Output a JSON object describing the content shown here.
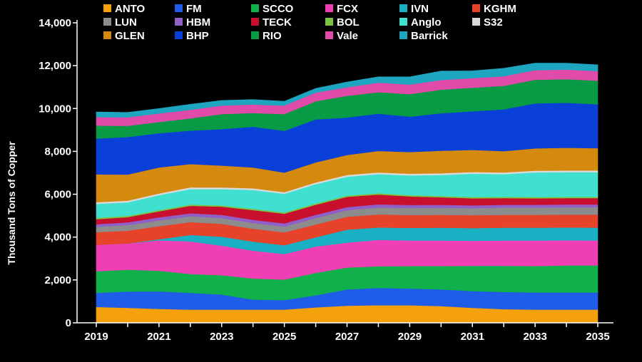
{
  "chart_data": {
    "type": "area",
    "stacked": true,
    "title": "",
    "xlabel": "",
    "ylabel": "Thousand Tons of Copper",
    "ylim": [
      0,
      14000
    ],
    "yticks": [
      "0",
      "2,000",
      "4,000",
      "6,000",
      "8,000",
      "10,000",
      "12,000",
      "14,000"
    ],
    "xticks": [
      "2019",
      "2021",
      "2023",
      "2025",
      "2027",
      "2029",
      "2031",
      "2033",
      "2035"
    ],
    "grid": false,
    "legend_position": "top",
    "x": [
      2019,
      2020,
      2021,
      2022,
      2023,
      2024,
      2025,
      2026,
      2027,
      2028,
      2029,
      2030,
      2031,
      2032,
      2033,
      2034,
      2035
    ],
    "series": [
      {
        "name": "ANTO",
        "color": "#f5a00d",
        "values": [
          740,
          700,
          650,
          620,
          620,
          620,
          620,
          720,
          800,
          820,
          820,
          780,
          700,
          640,
          620,
          620,
          620
        ]
      },
      {
        "name": "FM",
        "color": "#1f5ce8",
        "values": [
          660,
          760,
          820,
          780,
          700,
          460,
          440,
          560,
          760,
          810,
          780,
          780,
          780,
          800,
          800,
          800,
          800
        ]
      },
      {
        "name": "SCCO",
        "color": "#10b04a",
        "values": [
          1010,
          1020,
          960,
          880,
          900,
          990,
          960,
          1050,
          1020,
          1010,
          1050,
          1090,
          1180,
          1220,
          1230,
          1260,
          1260
        ]
      },
      {
        "name": "FCX",
        "color": "#f03fb4",
        "values": [
          1230,
          1220,
          1420,
          1520,
          1380,
          1300,
          1190,
          1230,
          1160,
          1230,
          1190,
          1190,
          1170,
          1180,
          1190,
          1170,
          1160
        ]
      },
      {
        "name": "IVN",
        "color": "#18b0c2",
        "values": [
          0,
          0,
          50,
          300,
          420,
          420,
          410,
          430,
          610,
          580,
          590,
          600,
          590,
          600,
          600,
          600,
          600
        ]
      },
      {
        "name": "KGHM",
        "color": "#e6432a",
        "values": [
          590,
          600,
          610,
          600,
          600,
          600,
          600,
          600,
          600,
          610,
          600,
          600,
          600,
          600,
          600,
          600,
          610
        ]
      },
      {
        "name": "LUN",
        "color": "#8c8c8c",
        "values": [
          250,
          260,
          270,
          270,
          270,
          270,
          270,
          300,
          300,
          320,
          330,
          330,
          330,
          340,
          340,
          340,
          340
        ]
      },
      {
        "name": "HBM",
        "color": "#9060c8",
        "values": [
          120,
          130,
          140,
          140,
          150,
          150,
          150,
          150,
          150,
          150,
          140,
          140,
          130,
          130,
          130,
          130,
          130
        ]
      },
      {
        "name": "TECK",
        "color": "#c8102e",
        "values": [
          240,
          240,
          280,
          350,
          380,
          450,
          450,
          470,
          480,
          460,
          400,
          350,
          330,
          310,
          300,
          300,
          300
        ]
      },
      {
        "name": "BOL",
        "color": "#7cc242",
        "values": [
          60,
          60,
          60,
          60,
          60,
          60,
          60,
          60,
          60,
          60,
          60,
          60,
          60,
          60,
          60,
          60,
          60
        ]
      },
      {
        "name": "Anglo",
        "color": "#40e0d0",
        "values": [
          650,
          630,
          700,
          720,
          760,
          880,
          870,
          900,
          880,
          890,
          920,
          980,
          1090,
          1060,
          1150,
          1150,
          1150
        ]
      },
      {
        "name": "S32",
        "color": "#d9d9d9",
        "values": [
          80,
          80,
          80,
          80,
          80,
          80,
          80,
          80,
          80,
          80,
          80,
          80,
          80,
          80,
          80,
          80,
          80
        ]
      },
      {
        "name": "GLEN",
        "color": "#d4890f",
        "values": [
          1300,
          1220,
          1210,
          1090,
          1020,
          970,
          910,
          940,
          930,
          1000,
          1010,
          1050,
          1030,
          990,
          1040,
          1060,
          1040
        ]
      },
      {
        "name": "BHP",
        "color": "#0a3fd8",
        "values": [
          1670,
          1750,
          1600,
          1560,
          1700,
          1900,
          1950,
          2000,
          1750,
          1740,
          1650,
          1750,
          1800,
          1950,
          2100,
          2100,
          2050
        ]
      },
      {
        "name": "RIO",
        "color": "#089a45",
        "values": [
          600,
          520,
          520,
          570,
          700,
          640,
          780,
          850,
          1010,
          1000,
          1050,
          1100,
          1100,
          1100,
          1100,
          1100,
          1100
        ]
      },
      {
        "name": "Vale",
        "color": "#e04aa8",
        "values": [
          400,
          400,
          400,
          400,
          400,
          400,
          400,
          400,
          400,
          450,
          450,
          450,
          450,
          450,
          450,
          450,
          450
        ]
      },
      {
        "name": "Barrick",
        "color": "#1ea5bf",
        "values": [
          240,
          230,
          230,
          260,
          240,
          230,
          200,
          200,
          250,
          270,
          360,
          420,
          340,
          370,
          330,
          300,
          290
        ]
      }
    ]
  }
}
